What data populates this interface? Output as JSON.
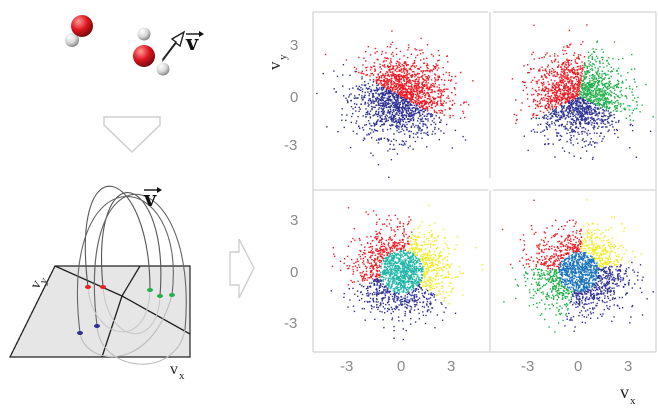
{
  "figure": {
    "vector_symbol": "v",
    "axis_x_label": "v",
    "axis_x_sub": "x",
    "axis_y_label": "v",
    "axis_y_sub": "y"
  },
  "plots": {
    "y_ticks": [
      "3",
      "0",
      "-3"
    ],
    "x_ticks": [
      "-3",
      "0",
      "3"
    ],
    "panels": [
      {
        "id": "top-left",
        "regions": 2
      },
      {
        "id": "top-right",
        "regions": 3
      },
      {
        "id": "bottom-left",
        "regions": 4
      },
      {
        "id": "bottom-right",
        "regions": 5
      }
    ]
  },
  "colors": {
    "red": "#ee1c25",
    "blue": "#2e3192",
    "green": "#22b04b",
    "yellow": "#f2ec1a",
    "cyan": "#21b6a8",
    "mid_blue": "#1b75bc",
    "arrow": "#d9d9d9",
    "plane": "#e6e6e6"
  }
}
